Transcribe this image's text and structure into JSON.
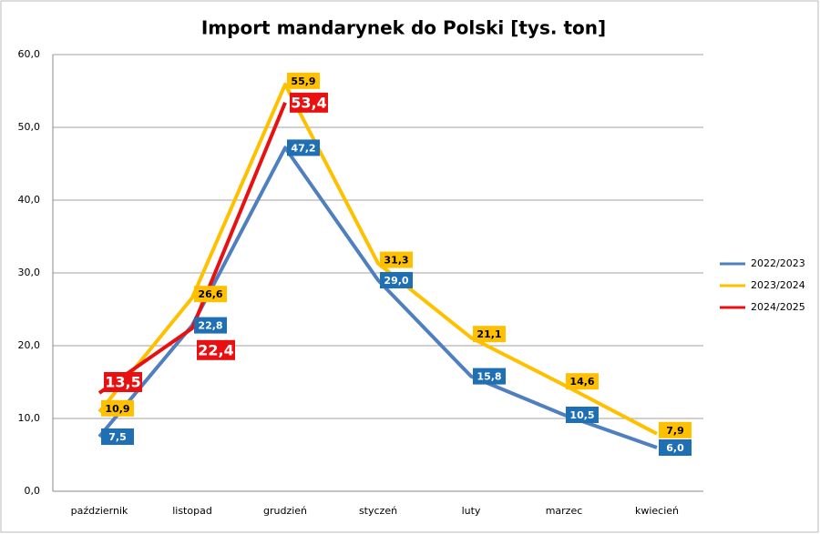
{
  "chart_data": {
    "type": "line",
    "title": "Import mandarynek do Polski [tys. ton]",
    "categories": [
      "październik",
      "listopad",
      "grudzień",
      "styczeń",
      "luty",
      "marzec",
      "kwiecień"
    ],
    "series": [
      {
        "name": "2022/2023",
        "color": "#4f7fbf",
        "label_color": "#1f6fb5",
        "values": [
          7.5,
          22.8,
          47.2,
          29.0,
          15.8,
          10.5,
          6.0
        ],
        "value_labels": [
          "7,5",
          "22,8",
          "47,2",
          "29,0",
          "15,8",
          "10,5",
          "6,0"
        ]
      },
      {
        "name": "2023/2024",
        "color": "#ffc000",
        "label_color": "#ffc000",
        "values": [
          10.9,
          26.6,
          55.9,
          31.3,
          21.1,
          14.6,
          7.9
        ],
        "value_labels": [
          "10,9",
          "26,6",
          "55,9",
          "31,3",
          "21,1",
          "14,6",
          "7,9"
        ]
      },
      {
        "name": "2024/2025",
        "color": "#e81010",
        "label_color": "#e81010",
        "values": [
          13.5,
          22.4,
          53.4,
          null,
          null,
          null,
          null
        ],
        "value_labels": [
          "13,5",
          "22,4",
          "53,4",
          null,
          null,
          null,
          null
        ]
      }
    ],
    "ylim": [
      0,
      60
    ],
    "yticks": [
      {
        "value": 0,
        "label": "0,0"
      },
      {
        "value": 10,
        "label": "10,0"
      },
      {
        "value": 20,
        "label": "20,0"
      },
      {
        "value": 30,
        "label": "30,0"
      },
      {
        "value": 40,
        "label": "40,0"
      },
      {
        "value": 50,
        "label": "50,0"
      },
      {
        "value": 60,
        "label": "60,0"
      }
    ],
    "grid": true,
    "legend": "right"
  }
}
